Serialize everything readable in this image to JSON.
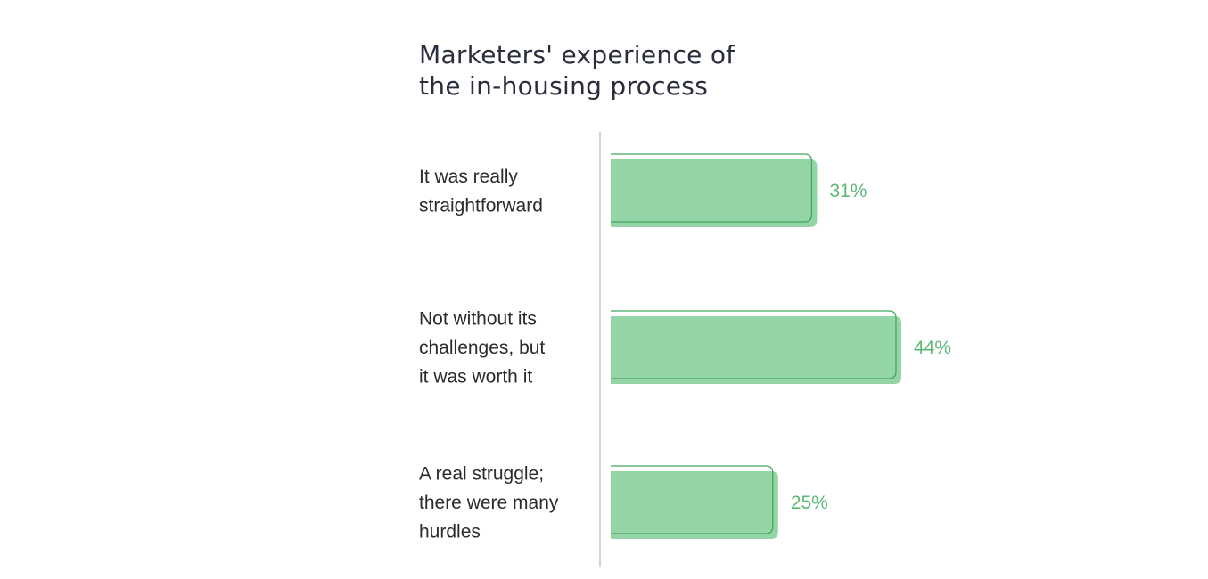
{
  "chart_data": {
    "type": "bar",
    "orientation": "horizontal",
    "title_lines": [
      "Marketers' experience of",
      "the in-housing process"
    ],
    "categories": [
      [
        "It was really",
        "straightforward"
      ],
      [
        "Not without its",
        "challenges, but",
        "it was worth it"
      ],
      [
        "A real struggle;",
        "there were many",
        "hurdles"
      ]
    ],
    "values": [
      31,
      44,
      25
    ],
    "value_labels": [
      "31%",
      "44%",
      "25%"
    ],
    "xlim": [
      0,
      44
    ],
    "grid": false,
    "legend": "none",
    "colors": {
      "bar_fill": "#95d4a7",
      "bar_outline": "#3daa5c",
      "value_text": "#5cb874",
      "axis_line": "#c8c8c8"
    }
  }
}
